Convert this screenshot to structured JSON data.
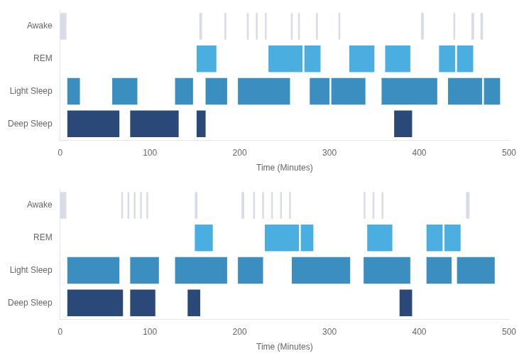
{
  "chart_data": [
    {
      "type": "bar",
      "orientation": "horizontal",
      "categories": [
        "Deep Sleep",
        "Light Sleep",
        "REM",
        "Awake"
      ],
      "xlabel": "Time (Minutes)",
      "xlim": [
        0,
        500
      ],
      "xticks": [
        0,
        100,
        200,
        300,
        400,
        500
      ],
      "grid": false,
      "series": [
        {
          "name": "Deep Sleep",
          "color": "#2a4878",
          "values": [
            [
              8,
              58
            ],
            [
              78,
              54
            ],
            [
              152,
              10
            ],
            [
              372,
              20
            ]
          ]
        },
        {
          "name": "Light Sleep",
          "color": "#3a8fc0",
          "values": [
            [
              8,
              14
            ],
            [
              58,
              28
            ],
            [
              128,
              20
            ],
            [
              162,
              24
            ],
            [
              198,
              58
            ],
            [
              278,
              22
            ],
            [
              302,
              38
            ],
            [
              358,
              62
            ],
            [
              432,
              38
            ],
            [
              472,
              18
            ]
          ]
        },
        {
          "name": "REM",
          "color": "#4aaee0",
          "values": [
            [
              152,
              22
            ],
            [
              232,
              38
            ],
            [
              272,
              18
            ],
            [
              322,
              28
            ],
            [
              362,
              28
            ],
            [
              422,
              18
            ],
            [
              442,
              18
            ]
          ]
        },
        {
          "name": "Awake",
          "color": "#d8dce8",
          "values": [
            [
              0,
              7
            ],
            [
              155,
              3
            ],
            [
              183,
              2
            ],
            [
              208,
              2
            ],
            [
              218,
              2
            ],
            [
              228,
              2
            ],
            [
              257,
              2
            ],
            [
              265,
              2
            ],
            [
              285,
              2
            ],
            [
              310,
              2
            ],
            [
              402,
              3
            ],
            [
              438,
              2
            ],
            [
              458,
              3
            ],
            [
              468,
              3
            ]
          ]
        }
      ]
    },
    {
      "type": "bar",
      "orientation": "horizontal",
      "categories": [
        "Deep Sleep",
        "Light Sleep",
        "REM",
        "Awake"
      ],
      "xlabel": "Time (Minutes)",
      "xlim": [
        0,
        500
      ],
      "xticks": [
        0,
        100,
        200,
        300,
        400,
        500
      ],
      "grid": false,
      "series": [
        {
          "name": "Deep Sleep",
          "color": "#2a4878",
          "values": [
            [
              8,
              62
            ],
            [
              78,
              28
            ],
            [
              142,
              14
            ],
            [
              378,
              14
            ]
          ]
        },
        {
          "name": "Light Sleep",
          "color": "#3a8fc0",
          "values": [
            [
              8,
              58
            ],
            [
              78,
              32
            ],
            [
              128,
              58
            ],
            [
              198,
              28
            ],
            [
              258,
              65
            ],
            [
              338,
              52
            ],
            [
              408,
              28
            ],
            [
              442,
              42
            ]
          ]
        },
        {
          "name": "REM",
          "color": "#4aaee0",
          "values": [
            [
              150,
              20
            ],
            [
              228,
              38
            ],
            [
              268,
              14
            ],
            [
              342,
              28
            ],
            [
              408,
              18
            ],
            [
              428,
              18
            ]
          ]
        },
        {
          "name": "Awake",
          "color": "#d8dce8",
          "values": [
            [
              0,
              7
            ],
            [
              68,
              2
            ],
            [
              75,
              2
            ],
            [
              82,
              2
            ],
            [
              89,
              2
            ],
            [
              96,
              2
            ],
            [
              150,
              3
            ],
            [
              202,
              3
            ],
            [
              215,
              2
            ],
            [
              225,
              2
            ],
            [
              235,
              2
            ],
            [
              245,
              2
            ],
            [
              255,
              2
            ],
            [
              338,
              2
            ],
            [
              348,
              2
            ],
            [
              358,
              2
            ],
            [
              452,
              4
            ]
          ]
        }
      ]
    }
  ]
}
